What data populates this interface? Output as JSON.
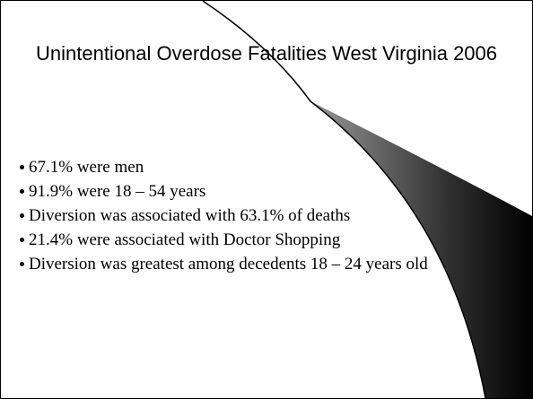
{
  "slide": {
    "title": "Unintentional Overdose Fatalities West Virginia 2006",
    "bullets": [
      "67.1% were men",
      "91.9% were 18 – 54 years",
      "Diversion was associated with 63.1% of deaths",
      "21.4% were associated with Doctor Shopping",
      "Diversion was greatest among decedents 18 – 24 years old"
    ]
  }
}
